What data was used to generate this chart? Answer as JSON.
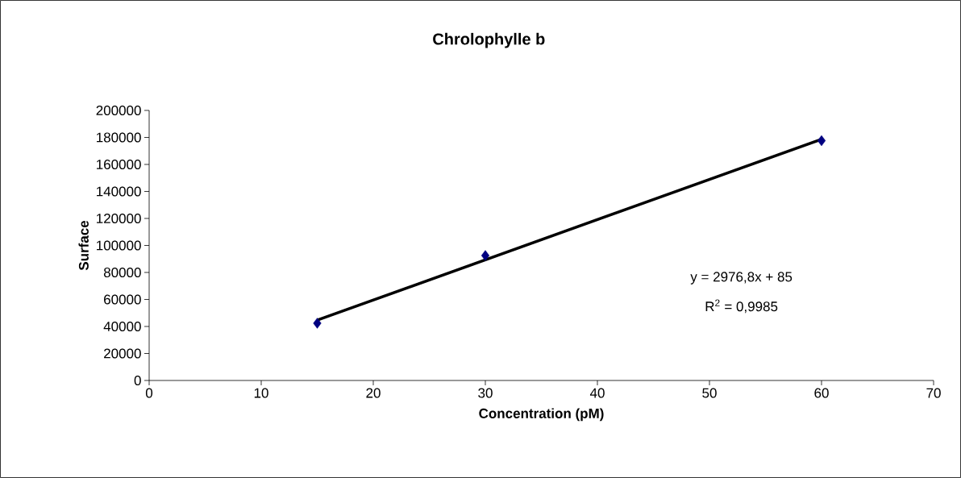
{
  "chart_data": {
    "type": "scatter",
    "title": "Chrolophylle b",
    "xlabel": "Concentration (pM)",
    "ylabel": "Surface",
    "annotations": [
      "y = 2976,8x + 85",
      "R$^{2}$ = 0,9985"
    ],
    "xlim": [
      0,
      70
    ],
    "ylim": [
      0,
      200000
    ],
    "xticks": [
      0,
      10,
      20,
      30,
      40,
      50,
      60,
      70
    ],
    "yticks": [
      0,
      20000,
      40000,
      60000,
      80000,
      100000,
      120000,
      140000,
      160000,
      180000,
      200000
    ],
    "series": [
      {
        "color": "#000080",
        "marker": "diamond",
        "x": [
          15,
          30,
          60
        ],
        "values": [
          42400,
          92500,
          177600
        ]
      },
      {
        "type": "line",
        "color": "#000000",
        "marker": "none",
        "x": [
          15,
          60
        ],
        "values": [
          44700,
          178700
        ]
      }
    ]
  }
}
